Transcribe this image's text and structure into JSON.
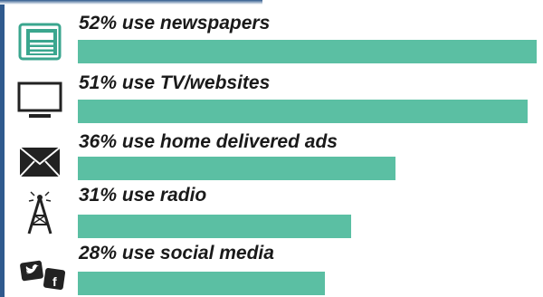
{
  "colors": {
    "bar": "#5bbfa3",
    "frame": "#2f5a8e",
    "text": "#1a1a1a",
    "icon_teal": "#3aa68e",
    "icon_dark": "#222222"
  },
  "chart_data": {
    "type": "bar",
    "orientation": "horizontal",
    "title": "",
    "xlabel": "",
    "ylabel": "",
    "xlim": [
      0,
      55
    ],
    "categories": [
      "newspapers",
      "TV/websites",
      "home delivered ads",
      "radio",
      "social media"
    ],
    "values": [
      52,
      51,
      36,
      31,
      28
    ],
    "labels": [
      "52% use newspapers",
      "51% use TV/websites",
      "36% use home delivered ads",
      "31% use radio",
      "28% use social media"
    ],
    "icons": [
      "newspaper-icon",
      "tv-icon",
      "envelope-icon",
      "radio-tower-icon",
      "social-media-icon"
    ]
  }
}
